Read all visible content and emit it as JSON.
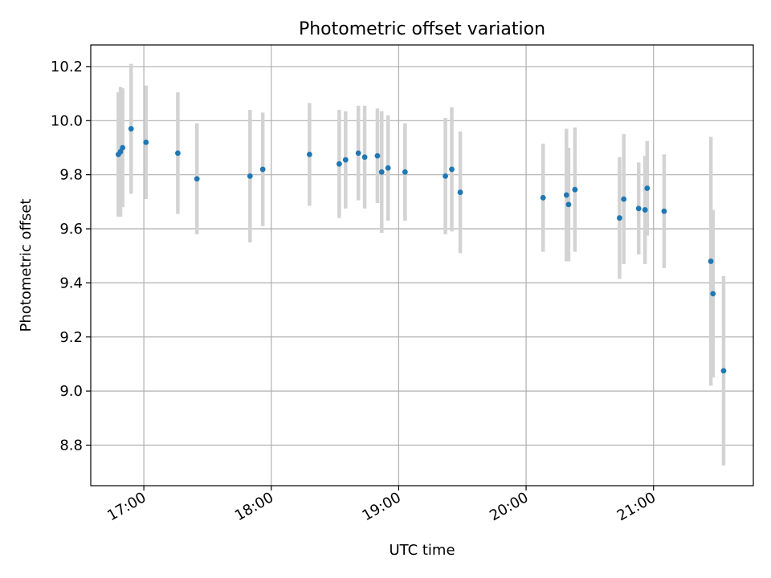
{
  "chart_data": {
    "type": "scatter",
    "title": "Photometric offset variation",
    "xlabel": "UTC time",
    "ylabel": "Photometric offset",
    "x_axis_type": "time",
    "xlim": [
      "16:35",
      "21:47"
    ],
    "ylim": [
      8.65,
      10.28
    ],
    "x_ticks": [
      "17:00",
      "18:00",
      "19:00",
      "20:00",
      "21:00"
    ],
    "y_ticks": [
      8.8,
      9.0,
      9.2,
      9.4,
      9.6,
      9.8,
      10.0,
      10.2
    ],
    "grid": true,
    "colors": {
      "points": "#1f77b4",
      "errorbars": "#d3d3d3",
      "grid": "#b0b0b0",
      "axes": "#000000"
    },
    "points": [
      {
        "x": "16:48",
        "y": 9.875,
        "err": 0.23
      },
      {
        "x": "16:49",
        "y": 9.885,
        "err": 0.24
      },
      {
        "x": "16:50",
        "y": 9.9,
        "err": 0.22
      },
      {
        "x": "16:54",
        "y": 9.97,
        "err": 0.24
      },
      {
        "x": "17:01",
        "y": 9.92,
        "err": 0.21
      },
      {
        "x": "17:16",
        "y": 9.88,
        "err": 0.225
      },
      {
        "x": "17:25",
        "y": 9.785,
        "err": 0.205
      },
      {
        "x": "17:50",
        "y": 9.795,
        "err": 0.245
      },
      {
        "x": "17:56",
        "y": 9.82,
        "err": 0.21
      },
      {
        "x": "18:18",
        "y": 9.875,
        "err": 0.19
      },
      {
        "x": "18:32",
        "y": 9.84,
        "err": 0.2
      },
      {
        "x": "18:35",
        "y": 9.855,
        "err": 0.18
      },
      {
        "x": "18:41",
        "y": 9.88,
        "err": 0.175
      },
      {
        "x": "18:44",
        "y": 9.865,
        "err": 0.19
      },
      {
        "x": "18:50",
        "y": 9.87,
        "err": 0.175
      },
      {
        "x": "18:52",
        "y": 9.81,
        "err": 0.225
      },
      {
        "x": "18:55",
        "y": 9.825,
        "err": 0.195
      },
      {
        "x": "19:03",
        "y": 9.81,
        "err": 0.18
      },
      {
        "x": "19:22",
        "y": 9.795,
        "err": 0.215
      },
      {
        "x": "19:25",
        "y": 9.82,
        "err": 0.23
      },
      {
        "x": "19:29",
        "y": 9.735,
        "err": 0.225
      },
      {
        "x": "20:08",
        "y": 9.715,
        "err": 0.2
      },
      {
        "x": "20:19",
        "y": 9.725,
        "err": 0.245
      },
      {
        "x": "20:20",
        "y": 9.69,
        "err": 0.21
      },
      {
        "x": "20:23",
        "y": 9.745,
        "err": 0.23
      },
      {
        "x": "20:44",
        "y": 9.64,
        "err": 0.225
      },
      {
        "x": "20:46",
        "y": 9.71,
        "err": 0.24
      },
      {
        "x": "20:53",
        "y": 9.675,
        "err": 0.17
      },
      {
        "x": "20:56",
        "y": 9.67,
        "err": 0.2
      },
      {
        "x": "20:57",
        "y": 9.75,
        "err": 0.175
      },
      {
        "x": "21:05",
        "y": 9.665,
        "err": 0.21
      },
      {
        "x": "21:27",
        "y": 9.48,
        "err": 0.46
      },
      {
        "x": "21:28",
        "y": 9.36,
        "err": 0.31
      },
      {
        "x": "21:33",
        "y": 9.075,
        "err": 0.35
      }
    ]
  }
}
